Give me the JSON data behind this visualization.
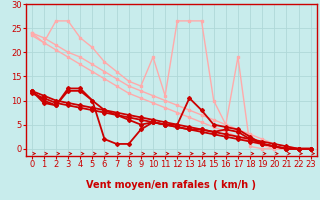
{
  "xlabel": "Vent moyen/en rafales ( km/h )",
  "bg_color": "#c8ecec",
  "grid_color": "#b0d8d8",
  "axis_color": "#cc0000",
  "xlim": [
    -0.5,
    23.5
  ],
  "ylim": [
    -1.5,
    30
  ],
  "xticks": [
    0,
    1,
    2,
    3,
    4,
    5,
    6,
    7,
    8,
    9,
    10,
    11,
    12,
    13,
    14,
    15,
    16,
    17,
    18,
    19,
    20,
    21,
    22,
    23
  ],
  "yticks": [
    0,
    5,
    10,
    15,
    20,
    25,
    30
  ],
  "lines": [
    {
      "x": [
        0,
        1,
        2,
        3,
        4,
        5,
        6,
        7,
        8,
        9,
        10,
        11,
        12,
        13,
        14,
        15,
        16,
        17,
        18,
        19,
        20,
        21,
        22,
        23
      ],
      "y": [
        24,
        23,
        21.5,
        20,
        19,
        17.5,
        16,
        14.5,
        13,
        12,
        11,
        10,
        9,
        8,
        7,
        6,
        5,
        4,
        3,
        2,
        1,
        0.5,
        0,
        0
      ],
      "color": "#ffaaaa",
      "lw": 1.0,
      "marker": "s",
      "ms": 2.0
    },
    {
      "x": [
        0,
        1,
        2,
        3,
        4,
        5,
        6,
        7,
        8,
        9,
        10,
        11,
        12,
        13,
        14,
        15,
        16,
        17,
        18,
        19,
        20,
        21,
        22,
        23
      ],
      "y": [
        23.5,
        22,
        20.5,
        19,
        17.5,
        16,
        14.5,
        13,
        11.5,
        10.5,
        9.5,
        8.5,
        7.5,
        6.5,
        5.5,
        4.5,
        3.5,
        2.5,
        1.5,
        0.8,
        0,
        0,
        0,
        0
      ],
      "color": "#ffaaaa",
      "lw": 1.0,
      "marker": "s",
      "ms": 2.0
    },
    {
      "x": [
        0,
        1,
        2,
        3,
        4,
        5,
        6,
        7,
        8,
        9,
        10,
        11,
        12,
        13,
        14,
        15,
        16,
        17,
        18,
        19,
        20,
        21,
        22,
        23
      ],
      "y": [
        24,
        22,
        26.5,
        26.5,
        23,
        21,
        18,
        16,
        14,
        13,
        19,
        11,
        26.5,
        26.5,
        26.5,
        10,
        5,
        19,
        0.5,
        0,
        0,
        0,
        0,
        0
      ],
      "color": "#ffaaaa",
      "lw": 1.0,
      "marker": "s",
      "ms": 2.0
    },
    {
      "x": [
        0,
        1,
        2,
        3,
        4,
        5,
        6,
        7,
        8,
        9,
        10,
        11,
        12,
        13,
        14,
        15,
        16,
        17,
        18,
        19,
        20,
        21,
        22,
        23
      ],
      "y": [
        12,
        11,
        10,
        9.5,
        9,
        8.5,
        8,
        7.5,
        7,
        6.5,
        6,
        5.5,
        5,
        4.5,
        4,
        3.5,
        3,
        2.5,
        2,
        1.5,
        1,
        0.5,
        0,
        0
      ],
      "color": "#cc0000",
      "lw": 1.3,
      "marker": "D",
      "ms": 2.0
    },
    {
      "x": [
        0,
        1,
        2,
        3,
        4,
        5,
        6,
        7,
        8,
        9,
        10,
        11,
        12,
        13,
        14,
        15,
        16,
        17,
        18,
        19,
        20,
        21,
        22,
        23
      ],
      "y": [
        11.5,
        10.5,
        9.5,
        9,
        8.5,
        8,
        7.5,
        7,
        6.5,
        6,
        5.5,
        5,
        4.5,
        4,
        3.5,
        3,
        2.5,
        2,
        1.5,
        1,
        0.5,
        0,
        0,
        0
      ],
      "color": "#cc0000",
      "lw": 1.3,
      "marker": "D",
      "ms": 2.0
    },
    {
      "x": [
        0,
        1,
        2,
        3,
        4,
        5,
        6,
        7,
        8,
        9,
        10,
        11,
        12,
        13,
        14,
        15,
        16,
        17,
        18,
        19,
        20,
        21,
        22,
        23
      ],
      "y": [
        12,
        10,
        9,
        12.5,
        12.5,
        10,
        8,
        7,
        6,
        5,
        5.5,
        5,
        5,
        10.5,
        8,
        5,
        4.5,
        4,
        2.5,
        1,
        0.5,
        0,
        0,
        0
      ],
      "color": "#cc0000",
      "lw": 1.3,
      "marker": "D",
      "ms": 2.0
    },
    {
      "x": [
        0,
        1,
        2,
        3,
        4,
        5,
        6,
        7,
        8,
        9,
        10,
        11,
        12,
        13,
        14,
        15,
        16,
        17,
        18,
        19,
        20,
        21,
        22,
        23
      ],
      "y": [
        12,
        9.5,
        9,
        12,
        12,
        10,
        2,
        1,
        1,
        4,
        5.5,
        5,
        4.5,
        4,
        4,
        3.5,
        4,
        3.5,
        2,
        1,
        0.5,
        0,
        0,
        0
      ],
      "color": "#cc0000",
      "lw": 1.3,
      "marker": "D",
      "ms": 2.0
    }
  ],
  "xlabel_color": "#cc0000",
  "xlabel_fontsize": 7,
  "tick_fontsize": 6,
  "tick_color": "#cc0000"
}
